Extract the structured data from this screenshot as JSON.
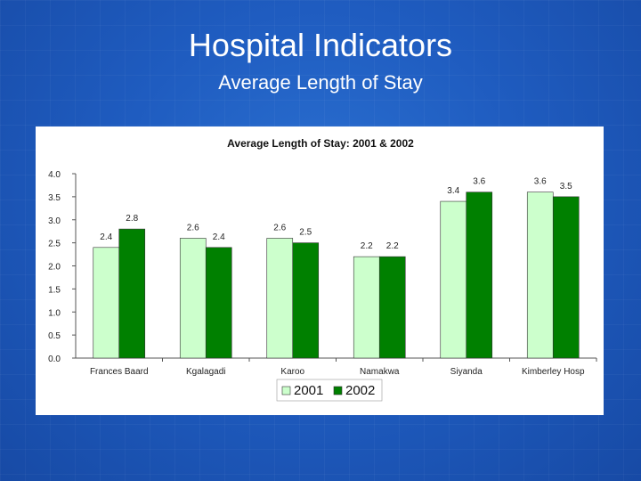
{
  "slide": {
    "title": "Hospital Indicators",
    "subtitle": "Average Length of Stay"
  },
  "colors": {
    "series_2001": "#ccffcc",
    "series_2002": "#008000",
    "bar_stroke": "#333333"
  },
  "chart_data": {
    "type": "bar",
    "title": "Average Length of Stay: 2001 & 2002",
    "categories": [
      "Frances Baard",
      "Kgalagadi",
      "Karoo",
      "Namakwa",
      "Siyanda",
      "Kimberley Hosp"
    ],
    "series": [
      {
        "name": "2001",
        "values": [
          2.4,
          2.6,
          2.6,
          2.2,
          3.4,
          3.6
        ],
        "labels": [
          "2.4",
          "2.6",
          "2.6",
          "2.2",
          "3.4",
          "3.6"
        ]
      },
      {
        "name": "2002",
        "values": [
          2.8,
          2.4,
          2.5,
          2.2,
          3.6,
          3.5
        ],
        "labels": [
          "2.8",
          "2.4",
          "2.5",
          "2.2",
          "3.6",
          "3.5"
        ]
      }
    ],
    "yticks": [
      "0.0",
      "0.5",
      "1.0",
      "1.5",
      "2.0",
      "2.5",
      "3.0",
      "3.5",
      "4.0"
    ],
    "ylim": [
      0,
      4
    ],
    "xlabel": "",
    "ylabel": "",
    "legend_position": "bottom-center",
    "grid": false
  }
}
